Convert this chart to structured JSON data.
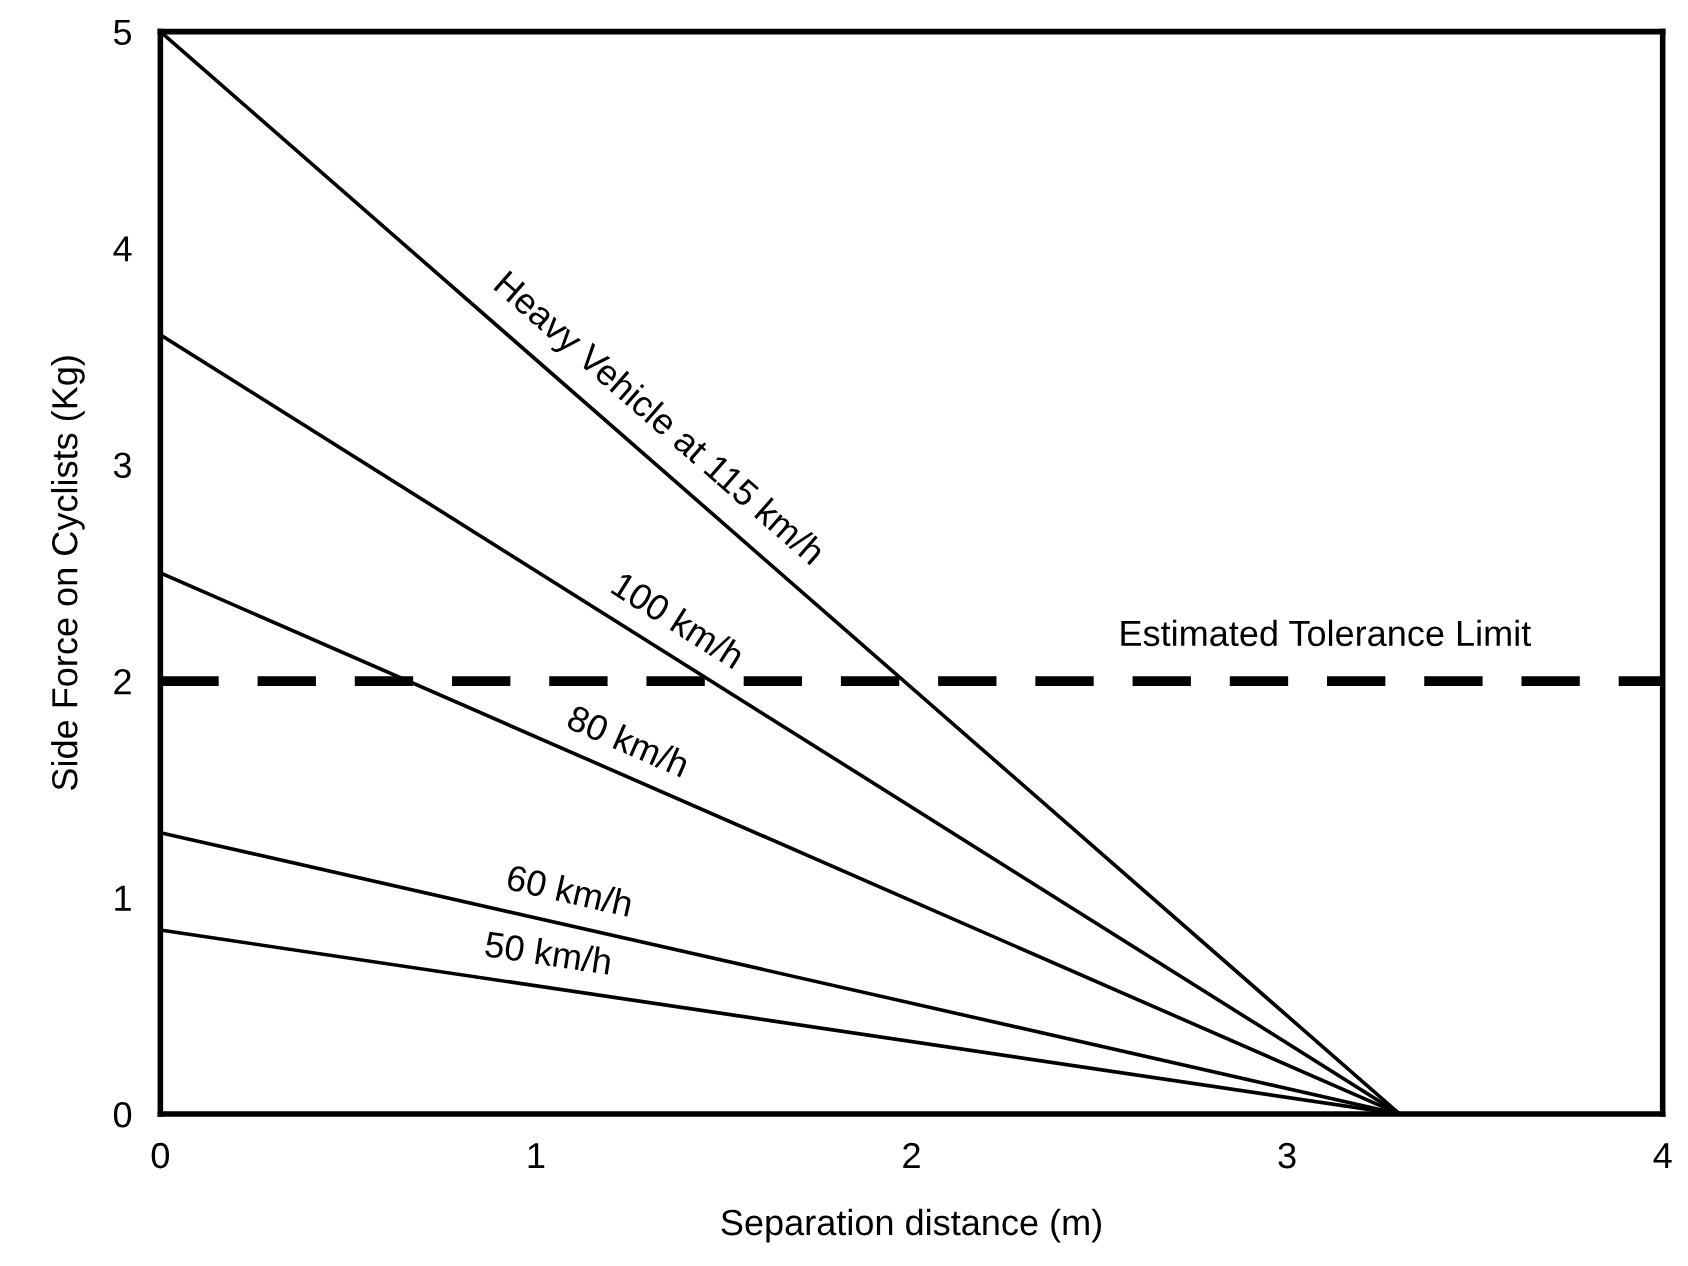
{
  "chart_data": {
    "type": "line",
    "xlabel": "Separation distance (m)",
    "ylabel": "Side Force on Cyclists (Kg)",
    "series": [
      {
        "color": "#000000",
        "values": [
          5,
          0
        ]
      },
      {
        "color": "#000000",
        "values": [
          3.6,
          0
        ]
      },
      {
        "color": "#000000",
        "values": [
          2.5,
          0
        ]
      },
      {
        "color": "#000000",
        "values": [
          1.3,
          0
        ]
      },
      {
        "color": "#000000",
        "values": [
          0.85,
          0
        ]
      }
    ],
    "annotations": [
      {
        "text": "Heavy Vehicle at 115 km/h",
        "x": 1.27,
        "y": 3.1
      },
      {
        "text": "100 km/h",
        "x": 1.33,
        "y": 2.15
      },
      {
        "text": "80 km/h",
        "x": 1.21,
        "y": 1.58
      },
      {
        "text": "60 km/h",
        "x": 1.07,
        "y": 0.88
      },
      {
        "text": "50 km/h",
        "x": 1.02,
        "y": 0.59
      }
    ],
    "ref_lines": [
      {
        "axis": "y",
        "value": 2,
        "label": "Estimated Tolerance Limit",
        "color": "#000000",
        "line_style": "dashed"
      }
    ],
    "x": [
      0,
      3.3
    ],
    "xlim": [
      0,
      4
    ],
    "ylim": [
      0,
      5
    ],
    "xticks": [
      0,
      1,
      2,
      3,
      4
    ],
    "yticks": [
      0,
      1,
      2,
      3,
      4,
      5
    ],
    "grid": false,
    "legend": false,
    "marker": "none",
    "line_style": "solid"
  }
}
